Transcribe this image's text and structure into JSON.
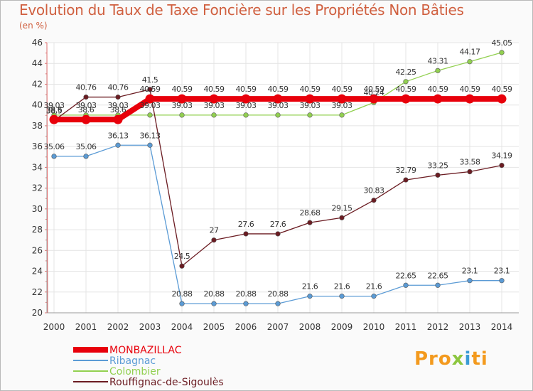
{
  "title": "Evolution du Taux de Taxe Foncière sur les Propriétés Non Bâties",
  "unit_label": "(en %)",
  "logo": {
    "text": "Proxiti"
  },
  "chart_data": {
    "type": "line",
    "title": "Evolution du Taux de Taxe Foncière sur les Propriétés Non Bâties",
    "ylabel": "(en %)",
    "xlabel": "",
    "ylim": [
      20,
      46
    ],
    "yticks": [
      20,
      22,
      24,
      26,
      28,
      30,
      32,
      34,
      36,
      38,
      40,
      42,
      44,
      46
    ],
    "categories": [
      "2000",
      "2001",
      "2002",
      "2003",
      "2004",
      "2005",
      "2006",
      "2007",
      "2008",
      "2009",
      "2010",
      "2011",
      "2012",
      "2013",
      "2014"
    ],
    "series": [
      {
        "name": "MONBAZILLAC",
        "color": "#e8000b",
        "values": [
          38.6,
          38.6,
          38.6,
          40.59,
          40.59,
          40.59,
          40.59,
          40.59,
          40.59,
          40.59,
          40.59,
          40.59,
          40.59,
          40.59,
          40.59
        ],
        "labels": [
          "38.6",
          "38.6",
          "38.6",
          "40.59",
          "40.59",
          "40.59",
          "40.59",
          "40.59",
          "40.59",
          "40.59",
          "40.59",
          "40.59",
          "40.59",
          "40.59",
          "40.59"
        ]
      },
      {
        "name": "Ribagnac",
        "color": "#5b9bd5",
        "values": [
          35.06,
          35.06,
          36.13,
          36.13,
          20.88,
          20.88,
          20.88,
          20.88,
          21.6,
          21.6,
          21.6,
          22.65,
          22.65,
          23.1,
          23.1
        ],
        "labels": [
          "35.06",
          "35.06",
          "36.13",
          "36.13",
          "20.88",
          "20.88",
          "20.88",
          "20.88",
          "21.6",
          "21.6",
          "21.6",
          "22.65",
          "22.65",
          "23.1",
          "23.1"
        ]
      },
      {
        "name": "Colombier",
        "color": "#92d050",
        "values": [
          39.03,
          39.03,
          39.03,
          39.03,
          39.03,
          39.03,
          39.03,
          39.03,
          39.03,
          39.03,
          40.24,
          42.25,
          43.31,
          44.17,
          45.05
        ],
        "labels": [
          "39.03",
          "39.03",
          "39.03",
          "39.03",
          "39.03",
          "39.03",
          "39.03",
          "39.03",
          "39.03",
          "39.03",
          "40.24",
          "42.25",
          "43.31",
          "44.17",
          "45.05"
        ]
      },
      {
        "name": "Rouffignac-de-Sigoulès",
        "color": "#6b1c22",
        "values": [
          38.5,
          40.76,
          40.76,
          41.5,
          24.5,
          27,
          27.6,
          27.6,
          28.68,
          29.15,
          30.83,
          32.79,
          33.25,
          33.58,
          34.19
        ],
        "labels": [
          "38.5",
          "40.76",
          "40.76",
          "41.5",
          "24.5",
          "27",
          "27.6",
          "27.6",
          "28.68",
          "29.15",
          "30.83",
          "32.79",
          "33.25",
          "33.58",
          "34.19"
        ]
      }
    ]
  }
}
